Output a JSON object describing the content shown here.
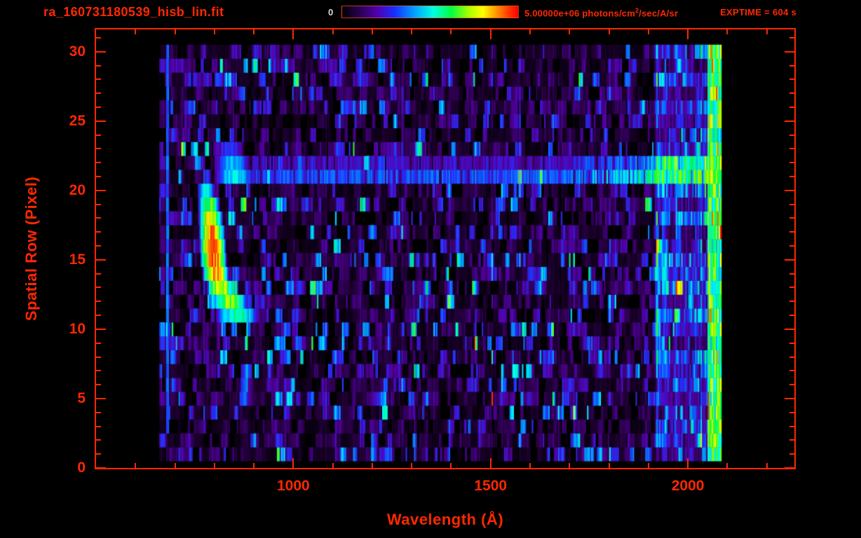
{
  "header": {
    "title": "ra_160731180539_hisb_lin.fit",
    "exptime_label": "EXPTIME = 604 s"
  },
  "colorbar": {
    "min_label": "0",
    "max_label_prefix": "5.00000e+06 photons/cm",
    "max_label_sup": "2",
    "max_label_suffix": "/sec/A/sr",
    "gradient_stops": [
      "#000000 0%",
      "#2a0050 10%",
      "#5000b0 20%",
      "#1530ff 30%",
      "#00aaff 42%",
      "#00ffe0 52%",
      "#00ff40 62%",
      "#a8ff00 72%",
      "#ffff00 80%",
      "#ff9000 88%",
      "#ff3300 95%",
      "#ff0000 100%"
    ]
  },
  "chart_data": {
    "type": "heatmap",
    "title": "ra_160731180539_hisb_lin.fit",
    "xlabel": "Wavelength (Å)",
    "ylabel": "Spatial Row (Pixel)",
    "scale": "linear",
    "xlim": [
      500,
      2270
    ],
    "ylim": [
      0,
      31.6
    ],
    "x_major_ticks": [
      1000,
      1500,
      2000
    ],
    "x_minor_ticks": [
      600,
      700,
      800,
      900,
      1100,
      1200,
      1300,
      1400,
      1600,
      1700,
      1800,
      1900,
      2100,
      2200
    ],
    "y_major_ticks": [
      0,
      5,
      10,
      15,
      20,
      25,
      30
    ],
    "y_minor_step": 1,
    "colorbar_min": 0,
    "colorbar_max": 5000000,
    "colorbar_units": "photons/cm2/sec/A/sr",
    "exposure_time_s": 604,
    "data_extent": {
      "wavelength": [
        660,
        2085
      ],
      "rows": [
        1,
        30
      ]
    },
    "colormap_stops": [
      {
        "v": 0.0,
        "c": "#000000"
      },
      {
        "v": 0.08,
        "c": "#26003f"
      },
      {
        "v": 0.18,
        "c": "#5500a8"
      },
      {
        "v": 0.28,
        "c": "#2430ff"
      },
      {
        "v": 0.38,
        "c": "#0090ff"
      },
      {
        "v": 0.5,
        "c": "#00ffff"
      },
      {
        "v": 0.62,
        "c": "#00ff50"
      },
      {
        "v": 0.72,
        "c": "#96ff00"
      },
      {
        "v": 0.8,
        "c": "#ffff00"
      },
      {
        "v": 0.9,
        "c": "#ff8c00"
      },
      {
        "v": 1.0,
        "c": "#ff1400"
      }
    ],
    "noise": {
      "seed": 20160731,
      "p_black": 0.45,
      "dash_max_run": 5
    },
    "features": [
      {
        "name": "emission-hook",
        "type": "segments",
        "description": "Bright hook-shaped emission feature near 755-912 A spanning rows 11-20, red-orange core at rows 14-17 near 780 A",
        "segments": [
          {
            "row": 11,
            "wl": [
              800,
              912
            ],
            "peak": 0.6
          },
          {
            "row": 12,
            "wl": [
              790,
              885
            ],
            "peak": 0.75
          },
          {
            "row": 13,
            "wl": [
              778,
              850
            ],
            "peak": 0.88
          },
          {
            "row": 14,
            "wl": [
              768,
              835
            ],
            "peak": 0.97
          },
          {
            "row": 15,
            "wl": [
              762,
              830
            ],
            "peak": 1.0
          },
          {
            "row": 16,
            "wl": [
              760,
              828
            ],
            "peak": 1.0
          },
          {
            "row": 17,
            "wl": [
              758,
              825
            ],
            "peak": 0.97
          },
          {
            "row": 18,
            "wl": [
              757,
              820
            ],
            "peak": 0.86
          },
          {
            "row": 19,
            "wl": [
              756,
              812
            ],
            "peak": 0.72
          },
          {
            "row": 20,
            "wl": [
              755,
              800
            ],
            "peak": 0.55
          }
        ]
      },
      {
        "name": "blue-blob",
        "type": "segments",
        "description": "Cyan-blue blob at rows 21-23 near 800-900 A",
        "segments": [
          {
            "row": 21,
            "wl": [
              800,
              900
            ],
            "peak": 0.52
          },
          {
            "row": 22,
            "wl": [
              800,
              890
            ],
            "peak": 0.45
          },
          {
            "row": 23,
            "wl": [
              805,
              875
            ],
            "peak": 0.3
          }
        ]
      },
      {
        "name": "row21-streak",
        "type": "streak",
        "description": "Horizontal emission streak along rows 21-22 from ~900 to 2085 A, brightening to cyan toward long wavelengths",
        "rows": [
          {
            "row": 21,
            "gain": 1.0
          },
          {
            "row": 22,
            "gain": 0.68
          }
        ],
        "wl": [
          895,
          2085
        ],
        "base": 0.3,
        "bright_wl": [
          1680,
          2060
        ],
        "bright": 0.54
      },
      {
        "name": "right-band",
        "type": "band",
        "description": "Enhanced blue-cyan emission band near 1915-2085 A across all rows",
        "wl": [
          1915,
          2085
        ],
        "boost": 0.3
      },
      {
        "name": "right-edge",
        "type": "edge",
        "description": "Bright green-yellow column at detector edge 2048-2085 A with a few hot red cells",
        "wl": [
          2048,
          2085
        ],
        "min_value": 0.42,
        "max_value": 0.8,
        "hot_fraction": 0.04
      },
      {
        "name": "left-line",
        "type": "vline",
        "description": "Faint blue vertical line near 680 A from row 3 upward",
        "wl": 680,
        "rows": [
          3,
          30
        ],
        "value": 0.28
      }
    ]
  },
  "style": {
    "accent_color": "#ff2800",
    "background_color": "#000000"
  }
}
